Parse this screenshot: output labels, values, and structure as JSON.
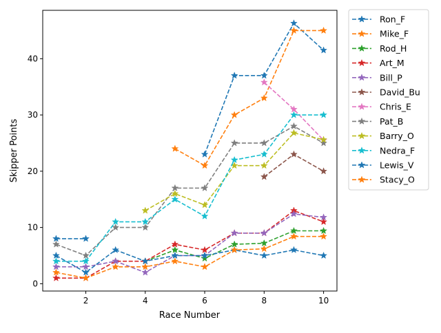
{
  "chart_data": {
    "type": "line",
    "title": "",
    "xlabel": "Race Number",
    "ylabel": "Skipper Points",
    "x": [
      1,
      2,
      3,
      4,
      5,
      6,
      7,
      8,
      9,
      10
    ],
    "xticks": [
      2,
      4,
      6,
      8,
      10
    ],
    "yticks": [
      0,
      10,
      20,
      30,
      40
    ],
    "xlim": [
      0.55,
      10.45
    ],
    "ylim": [
      -1.3,
      48.6
    ],
    "grid": false,
    "legend_position": "outside upper right",
    "line_style": "dashed",
    "marker": "star",
    "series": [
      {
        "name": "Ron_F",
        "color": "#1f77b4",
        "values": [
          8,
          8,
          null,
          null,
          null,
          23,
          37,
          37,
          46.3,
          41.5
        ]
      },
      {
        "name": "Mike_F",
        "color": "#ff7f0e",
        "values": [
          null,
          null,
          null,
          null,
          24,
          21,
          30,
          33,
          45,
          45
        ]
      },
      {
        "name": "Rod_H",
        "color": "#2ca02c",
        "values": [
          null,
          null,
          null,
          4,
          6,
          4.5,
          7,
          7.2,
          9.4,
          9.4
        ]
      },
      {
        "name": "Art_M",
        "color": "#d62728",
        "values": [
          1,
          1,
          4,
          4,
          7,
          6,
          9,
          9,
          13,
          11
        ]
      },
      {
        "name": "Bill_P",
        "color": "#9467bd",
        "values": [
          3,
          3,
          4,
          2,
          5,
          5,
          9,
          9,
          12.4,
          11.8
        ]
      },
      {
        "name": "David_Bu",
        "color": "#8c564b",
        "values": [
          null,
          null,
          null,
          null,
          null,
          null,
          null,
          19,
          23,
          20
        ]
      },
      {
        "name": "Chris_E",
        "color": "#e377c2",
        "values": [
          null,
          null,
          null,
          null,
          null,
          null,
          null,
          35.8,
          31,
          25.5
        ]
      },
      {
        "name": "Pat_B",
        "color": "#7f7f7f",
        "values": [
          7,
          5,
          10,
          10,
          17,
          17,
          25,
          25,
          28,
          25
        ]
      },
      {
        "name": "Barry_O",
        "color": "#bcbd22",
        "values": [
          null,
          null,
          null,
          13,
          16,
          14,
          21,
          21,
          26.8,
          25.6
        ]
      },
      {
        "name": "Nedra_F",
        "color": "#17becf",
        "values": [
          4,
          4,
          11,
          11,
          15,
          12,
          22,
          23,
          30,
          30
        ]
      },
      {
        "name": "Lewis_V",
        "color": "#1f77b4",
        "values": [
          5,
          2,
          6,
          4,
          5,
          5,
          6,
          5,
          6,
          5
        ]
      },
      {
        "name": "Stacy_O",
        "color": "#ff7f0e",
        "values": [
          2,
          1,
          3,
          3,
          4,
          3,
          6,
          6.2,
          8.4,
          8.4
        ]
      }
    ]
  }
}
